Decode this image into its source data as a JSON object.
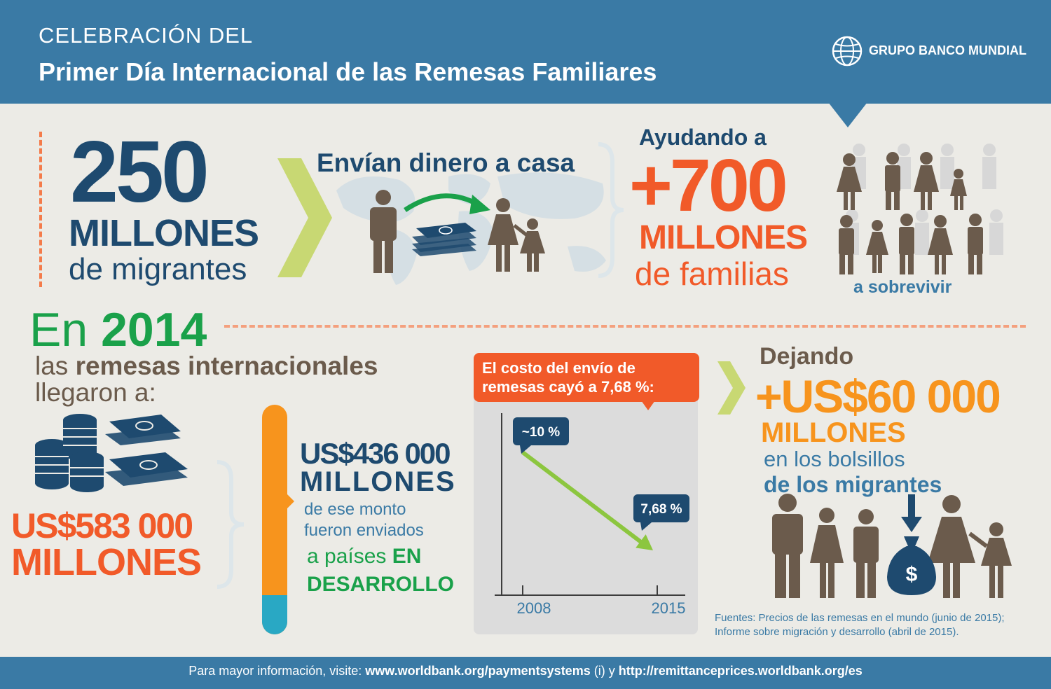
{
  "header": {
    "kicker": "CELEBRACIÓN DEL",
    "title": "Primer Día Internacional de las Remesas Familiares",
    "logo_text": "GRUPO BANCO MUNDIAL",
    "logo_icon": "globe-icon"
  },
  "migrants": {
    "number": "250",
    "unit": "MILLONES",
    "label": "de migrantes"
  },
  "send_money": {
    "title": "Envían dinero a casa",
    "icons": [
      "person-icon",
      "arrow-icon",
      "cash-stack-icon",
      "mother-child-icon",
      "world-map"
    ]
  },
  "families": {
    "prefix": "Ayudando a",
    "number": "+700",
    "unit": "MILLONES",
    "label": "de familias",
    "suffix": "a sobrevivir",
    "icons": [
      "family-group-icon"
    ]
  },
  "year_section": {
    "en": "En",
    "year": "2014",
    "line1_pre": "las ",
    "line1_bold": "remesas internacionales",
    "line2": "llegaron a:",
    "total_amount": "US$583 000",
    "total_unit": "MILLONES",
    "icons": [
      "coin-stack-icon",
      "cash-stack-icon",
      "thermometer-bar"
    ]
  },
  "developing": {
    "amount": "US$436 000",
    "unit": "MILLONES",
    "line1": "de ese monto",
    "line2": "fueron enviados",
    "line3_pre": "a países ",
    "line3_bold": "EN",
    "line4": "DESARROLLO"
  },
  "cost_chart": {
    "banner_line1": "El costo del envío de",
    "banner_line2": "remesas cayó a 7,68  %:",
    "start_label": "~10 %",
    "end_label": "7,68 %"
  },
  "chart_data": {
    "type": "line",
    "x": [
      "2008",
      "2015"
    ],
    "series": [
      {
        "values": [
          10,
          7.68
        ]
      }
    ],
    "xlabel": "",
    "ylabel": "",
    "colors": {
      "line": "#8cc63f",
      "callout": "#1e4a6f"
    }
  },
  "savings": {
    "prefix": "Dejando",
    "amount": "+US$60 000",
    "unit": "MILLONES",
    "line1": "en los bolsillos",
    "line2": "de los migrantes",
    "icons": [
      "family-icon",
      "money-bag-icon",
      "down-arrow-icon"
    ]
  },
  "sources": {
    "line1": "Fuentes: Precios de las remesas en el mundo (junio de 2015);",
    "line2": "Informe sobre migración y desarrollo (abril de 2015)."
  },
  "footer": {
    "pre": "Para mayor información, visite: ",
    "link1": "www.worldbank.org/paymentsystems",
    "mid": " (i) y ",
    "link2": "http://remittanceprices.worldbank.org/es"
  },
  "colors": {
    "header": "#3a7aa5",
    "navy": "#1e4a6f",
    "orange": "#f15a29",
    "amber": "#f7941d",
    "green": "#1aa14a",
    "brown": "#6b5b4c",
    "background": "#ecebe6"
  }
}
